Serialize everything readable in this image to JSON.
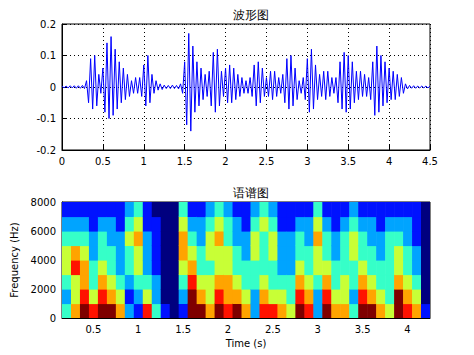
{
  "chart_data": [
    {
      "type": "line",
      "title": "波形图",
      "color": "#0000ff",
      "grid": true,
      "xlim": [
        0,
        4.5
      ],
      "xticks": [
        0,
        0.5,
        1,
        1.5,
        2,
        2.5,
        3,
        3.5,
        4,
        4.5
      ],
      "ylim": [
        -0.2,
        0.2
      ],
      "yticks": [
        -0.2,
        -0.1,
        0,
        0.1,
        0.2
      ],
      "x": [
        0,
        0.025,
        0.05,
        0.075,
        0.1,
        0.125,
        0.15,
        0.175,
        0.2,
        0.225,
        0.25,
        0.275,
        0.3,
        0.325,
        0.35,
        0.375,
        0.4,
        0.425,
        0.45,
        0.475,
        0.5,
        0.525,
        0.55,
        0.575,
        0.6,
        0.625,
        0.65,
        0.675,
        0.7,
        0.725,
        0.75,
        0.775,
        0.8,
        0.825,
        0.85,
        0.875,
        0.9,
        0.925,
        0.95,
        0.975,
        1,
        1.025,
        1.05,
        1.075,
        1.1,
        1.125,
        1.15,
        1.175,
        1.2,
        1.225,
        1.25,
        1.275,
        1.3,
        1.325,
        1.35,
        1.375,
        1.4,
        1.425,
        1.45,
        1.475,
        1.5,
        1.525,
        1.55,
        1.575,
        1.6,
        1.625,
        1.65,
        1.675,
        1.7,
        1.725,
        1.75,
        1.775,
        1.8,
        1.825,
        1.85,
        1.875,
        1.9,
        1.925,
        1.95,
        1.975,
        2,
        2.025,
        2.05,
        2.075,
        2.1,
        2.125,
        2.15,
        2.175,
        2.2,
        2.225,
        2.25,
        2.275,
        2.3,
        2.325,
        2.35,
        2.375,
        2.4,
        2.425,
        2.45,
        2.475,
        2.5,
        2.525,
        2.55,
        2.575,
        2.6,
        2.625,
        2.65,
        2.675,
        2.7,
        2.725,
        2.75,
        2.775,
        2.8,
        2.825,
        2.85,
        2.875,
        2.9,
        2.925,
        2.95,
        2.975,
        3,
        3.025,
        3.05,
        3.075,
        3.1,
        3.125,
        3.15,
        3.175,
        3.2,
        3.225,
        3.25,
        3.275,
        3.3,
        3.325,
        3.35,
        3.375,
        3.4,
        3.425,
        3.45,
        3.475,
        3.5,
        3.525,
        3.55,
        3.575,
        3.6,
        3.625,
        3.65,
        3.675,
        3.7,
        3.725,
        3.75,
        3.775,
        3.8,
        3.825,
        3.85,
        3.875,
        3.9,
        3.925,
        3.95,
        3.975,
        4,
        4.025,
        4.05,
        4.075,
        4.1,
        4.125,
        4.15,
        4.175,
        4.2,
        4.225,
        4.25,
        4.275,
        4.3,
        4.325,
        4.35,
        4.375,
        4.4,
        4.425,
        4.45,
        4.475,
        4.5
      ],
      "values": [
        0.003,
        -0.003,
        0.003,
        -0.003,
        0.004,
        -0.003,
        0.004,
        -0.004,
        0.004,
        -0.004,
        0.005,
        -0.005,
        0.02,
        -0.05,
        0.09,
        -0.07,
        0.1,
        -0.06,
        0.04,
        -0.02,
        0.06,
        -0.08,
        0.14,
        -0.1,
        0.16,
        -0.09,
        0.12,
        -0.07,
        0.08,
        -0.05,
        0.06,
        -0.04,
        0.04,
        -0.03,
        0.02,
        -0.02,
        0.03,
        -0.02,
        0.03,
        -0.03,
        0.07,
        -0.06,
        0.1,
        -0.05,
        0.04,
        -0.02,
        0.02,
        -0.01,
        0.01,
        -0.008,
        0.006,
        -0.005,
        0.005,
        -0.005,
        0.006,
        -0.005,
        0.005,
        -0.006,
        0.01,
        -0.02,
        0.08,
        -0.12,
        0.17,
        -0.14,
        0.13,
        -0.08,
        0.08,
        -0.06,
        0.06,
        -0.04,
        0.04,
        -0.03,
        0.05,
        -0.06,
        0.11,
        -0.08,
        0.12,
        -0.06,
        0.05,
        -0.03,
        0.06,
        -0.05,
        0.07,
        -0.05,
        0.06,
        -0.04,
        0.04,
        -0.03,
        0.03,
        -0.02,
        0.02,
        -0.02,
        0.03,
        -0.03,
        0.07,
        -0.06,
        0.08,
        -0.05,
        0.06,
        -0.03,
        0.03,
        -0.03,
        0.05,
        -0.04,
        0.05,
        -0.03,
        0.03,
        -0.02,
        0.04,
        -0.05,
        0.09,
        -0.07,
        0.1,
        -0.06,
        0.06,
        -0.04,
        0.02,
        -0.02,
        0.03,
        -0.04,
        0.09,
        -0.08,
        0.12,
        -0.07,
        0.07,
        -0.04,
        0.04,
        -0.03,
        0.05,
        -0.04,
        0.05,
        -0.03,
        0.03,
        -0.02,
        0.03,
        -0.05,
        0.08,
        -0.07,
        0.11,
        -0.08,
        0.1,
        -0.07,
        0.08,
        -0.05,
        0.05,
        -0.04,
        0.05,
        -0.03,
        0.04,
        -0.03,
        0.03,
        -0.04,
        0.08,
        -0.09,
        0.13,
        -0.08,
        0.1,
        -0.06,
        0.08,
        -0.05,
        0.06,
        -0.04,
        0.05,
        -0.04,
        0.04,
        -0.03,
        0.03,
        -0.02,
        0.01,
        -0.006,
        0.005,
        -0.004,
        0.004,
        -0.004,
        0.003,
        -0.003,
        0.003,
        -0.003,
        0.003,
        -0.003,
        0.003
      ]
    },
    {
      "type": "heatmap",
      "title": "语谱图",
      "x_label": "Time (s)",
      "y_label": "Frequency (Hz)",
      "xlim": [
        0.15,
        4.25
      ],
      "xticks": [
        0.5,
        1,
        1.5,
        2,
        2.5,
        3,
        3.5,
        4
      ],
      "ylim": [
        0,
        8000
      ],
      "yticks": [
        0,
        2000,
        4000,
        6000,
        8000
      ],
      "x_bins": [
        0.15,
        0.25,
        0.35,
        0.45,
        0.55,
        0.65,
        0.75,
        0.85,
        0.95,
        1.05,
        1.15,
        1.25,
        1.35,
        1.45,
        1.55,
        1.65,
        1.75,
        1.85,
        1.95,
        2.05,
        2.15,
        2.25,
        2.35,
        2.45,
        2.55,
        2.65,
        2.75,
        2.85,
        2.95,
        3.05,
        3.15,
        3.25,
        3.35,
        3.45,
        3.55,
        3.65,
        3.75,
        3.85,
        3.95,
        4.05,
        4.15,
        4.25
      ],
      "y_bins": [
        0,
        1000,
        2000,
        3000,
        4000,
        5000,
        6000,
        7000,
        8000
      ],
      "cells": [
        [
          5,
          4,
          5,
          6,
          6,
          5,
          4,
          3
        ],
        [
          7,
          6,
          6,
          8,
          7,
          5,
          4,
          3
        ],
        [
          9,
          8,
          7,
          7,
          6,
          5,
          4,
          3
        ],
        [
          8,
          6,
          5,
          5,
          4,
          4,
          3,
          3
        ],
        [
          9,
          8,
          7,
          6,
          5,
          5,
          4,
          3
        ],
        [
          9,
          7,
          6,
          5,
          5,
          4,
          4,
          3
        ],
        [
          7,
          6,
          5,
          4,
          4,
          4,
          3,
          3
        ],
        [
          4,
          3,
          4,
          5,
          5,
          6,
          5,
          4
        ],
        [
          3,
          4,
          5,
          6,
          6,
          7,
          6,
          5
        ],
        [
          8,
          6,
          5,
          4,
          4,
          4,
          3,
          3
        ],
        [
          5,
          4,
          4,
          3,
          3,
          3,
          3,
          2
        ],
        [
          3,
          2,
          2,
          2,
          2,
          2,
          2,
          2
        ],
        [
          2,
          2,
          2,
          2,
          2,
          2,
          2,
          2
        ],
        [
          3,
          4,
          5,
          6,
          7,
          7,
          6,
          5
        ],
        [
          9,
          9,
          8,
          7,
          6,
          5,
          4,
          3
        ],
        [
          9,
          7,
          6,
          5,
          5,
          4,
          4,
          3
        ],
        [
          7,
          6,
          6,
          5,
          6,
          6,
          5,
          4
        ],
        [
          9,
          8,
          7,
          6,
          6,
          7,
          6,
          5
        ],
        [
          8,
          7,
          7,
          6,
          6,
          5,
          5,
          4
        ],
        [
          9,
          7,
          6,
          5,
          5,
          4,
          4,
          3
        ],
        [
          7,
          6,
          5,
          5,
          4,
          4,
          3,
          3
        ],
        [
          4,
          4,
          5,
          5,
          6,
          6,
          5,
          4
        ],
        [
          8,
          7,
          6,
          5,
          5,
          5,
          6,
          5
        ],
        [
          8,
          6,
          5,
          5,
          6,
          6,
          5,
          4
        ],
        [
          7,
          6,
          5,
          4,
          4,
          4,
          3,
          3
        ],
        [
          6,
          5,
          5,
          4,
          4,
          4,
          3,
          3
        ],
        [
          9,
          8,
          7,
          6,
          5,
          5,
          4,
          3
        ],
        [
          8,
          7,
          6,
          5,
          5,
          4,
          4,
          3
        ],
        [
          4,
          4,
          5,
          6,
          6,
          7,
          6,
          5
        ],
        [
          9,
          8,
          7,
          6,
          5,
          5,
          4,
          3
        ],
        [
          7,
          6,
          5,
          5,
          4,
          4,
          3,
          3
        ],
        [
          7,
          6,
          6,
          5,
          5,
          5,
          4,
          3
        ],
        [
          5,
          4,
          5,
          5,
          6,
          6,
          5,
          4
        ],
        [
          9,
          8,
          7,
          6,
          5,
          5,
          4,
          3
        ],
        [
          9,
          7,
          6,
          5,
          5,
          4,
          4,
          3
        ],
        [
          7,
          6,
          5,
          5,
          4,
          4,
          3,
          3
        ],
        [
          6,
          5,
          5,
          5,
          5,
          5,
          4,
          3
        ],
        [
          9,
          9,
          7,
          6,
          6,
          5,
          4,
          3
        ],
        [
          8,
          7,
          6,
          5,
          5,
          4,
          4,
          3
        ],
        [
          7,
          6,
          5,
          4,
          4,
          3,
          3,
          3
        ],
        [
          3,
          2,
          2,
          2,
          2,
          2,
          2,
          2
        ]
      ]
    }
  ]
}
